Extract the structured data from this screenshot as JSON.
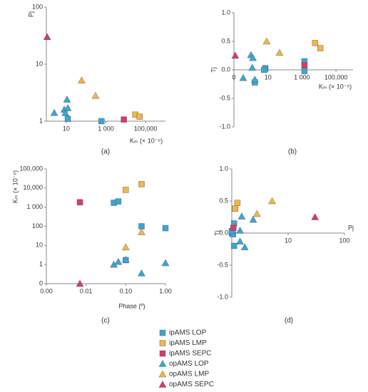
{
  "chart_data": [
    {
      "type": "scatter",
      "label": "(a)",
      "xlabel": "Kₘ (× 10⁻⁶)",
      "ylabel": "Pj",
      "xlog": true,
      "ylog": true,
      "xlim": [
        1,
        1000000
      ],
      "ylim": [
        1,
        100
      ],
      "xticks": [
        10,
        {
          "value": 1000,
          "label": "1 000"
        },
        {
          "value": 100000,
          "label": "100,000"
        }
      ],
      "yticks": [
        1,
        10,
        100
      ],
      "series": [
        {
          "name": "ipAMS LOP",
          "color": "#3aa6d4",
          "marker": "square",
          "x": [
            12,
            600
          ],
          "values": [
            1.1,
            1.0
          ]
        },
        {
          "name": "ipAMS LMP",
          "color": "#f2b44b",
          "marker": "square",
          "x": [
            30000,
            50000
          ],
          "values": [
            1.3,
            1.2
          ]
        },
        {
          "name": "ipAMS SEPC",
          "color": "#d9396a",
          "marker": "square",
          "x": [
            8000
          ],
          "values": [
            1.07
          ]
        },
        {
          "name": "opAMS LOP",
          "color": "#3aa6d4",
          "marker": "triangle",
          "x": [
            2.5,
            8,
            9,
            11,
            12
          ],
          "values": [
            1.4,
            1.6,
            1.4,
            2.4,
            1.7
          ]
        },
        {
          "name": "opAMS LMP",
          "color": "#f2b44b",
          "marker": "triangle",
          "x": [
            60,
            300
          ],
          "values": [
            5.2,
            2.8
          ]
        },
        {
          "name": "opAMS SEPC",
          "color": "#d9396a",
          "marker": "triangle",
          "x": [
            1.1
          ],
          "values": [
            30
          ]
        }
      ]
    },
    {
      "type": "scatter",
      "label": "(b)",
      "xlabel": "Kₘ (× 10⁻⁶)",
      "ylabel": "Tj",
      "xlog": true,
      "ylog": false,
      "x_axis_at_zero": true,
      "xlim": [
        0.1,
        1000000
      ],
      "ylim": [
        -1,
        1
      ],
      "xticks": [
        {
          "value": 0.1,
          "label": "0"
        },
        10,
        {
          "value": 1000,
          "label": "1 000"
        },
        {
          "value": 100000,
          "label": "100,000"
        }
      ],
      "yticks": [
        {
          "value": 1,
          "label": "1.0"
        },
        0.5,
        {
          "value": 0,
          "label": "0.0"
        },
        -0.5,
        {
          "value": -1,
          "label": "-1.0"
        }
      ],
      "series": [
        {
          "color": "#3aa6d4",
          "marker": "square",
          "x": [
            1.7,
            7,
            6,
            1400,
            1400
          ],
          "values": [
            -0.22,
            0.03,
            0.0,
            0.15,
            -0.02
          ]
        },
        {
          "color": "#f2b44b",
          "marker": "square",
          "x": [
            5900,
            12000
          ],
          "values": [
            0.47,
            0.38
          ]
        },
        {
          "color": "#d9396a",
          "marker": "square",
          "x": [
            1400
          ],
          "values": [
            0.08
          ]
        },
        {
          "color": "#3aa6d4",
          "marker": "triangle",
          "x": [
            0.35,
            1.0,
            1.3,
            1.2,
            1.7
          ],
          "values": [
            -0.14,
            0.26,
            0.21,
            0.04,
            -0.17
          ]
        },
        {
          "color": "#f2b44b",
          "marker": "triangle",
          "x": [
            8.4,
            48
          ],
          "values": [
            0.5,
            0.3
          ]
        },
        {
          "color": "#d9396a",
          "marker": "triangle",
          "x": [
            0.12
          ],
          "values": [
            0.25
          ]
        }
      ]
    },
    {
      "type": "scatter",
      "label": "(c)",
      "xlabel": "Phase (º)",
      "ylabel": "Kₘ (× 10⁻⁶)",
      "xlog": true,
      "ylog": true,
      "xlim": [
        0.001,
        1
      ],
      "ylim": [
        0.1,
        100000
      ],
      "xticks": [
        {
          "value": 0.001,
          "label": "0.00"
        },
        {
          "value": 0.01,
          "label": "0.01"
        },
        {
          "value": 0.1,
          "label": "0.10"
        },
        {
          "value": 1,
          "label": "1.00"
        }
      ],
      "yticks": [
        {
          "value": 0.1,
          "label": "0"
        },
        1,
        10,
        100,
        {
          "value": 1000,
          "label": "1 000"
        },
        {
          "value": 10000,
          "label": "10,000"
        },
        {
          "value": 100000,
          "label": "100,000"
        }
      ],
      "series": [
        {
          "color": "#3aa6d4",
          "marker": "square",
          "x": [
            0.05,
            0.065,
            0.1,
            0.25,
            1.0
          ],
          "values": [
            1700,
            2000,
            1.7,
            100,
            80
          ]
        },
        {
          "color": "#f2b44b",
          "marker": "square",
          "x": [
            0.1,
            0.25
          ],
          "values": [
            8000,
            16000
          ]
        },
        {
          "color": "#d9396a",
          "marker": "square",
          "x": [
            0.007
          ],
          "values": [
            1800
          ]
        },
        {
          "color": "#3aa6d4",
          "marker": "triangle",
          "x": [
            0.05,
            0.065,
            0.1,
            0.25,
            1.0
          ],
          "values": [
            1.0,
            1.4,
            1.8,
            0.35,
            1.2
          ]
        },
        {
          "color": "#f2b44b",
          "marker": "triangle",
          "x": [
            0.1,
            0.25
          ],
          "values": [
            8,
            50
          ]
        },
        {
          "color": "#d9396a",
          "marker": "triangle",
          "x": [
            0.007
          ],
          "values": [
            0.1
          ]
        }
      ]
    },
    {
      "type": "scatter",
      "label": "(d)",
      "xlabel": "Pj",
      "ylabel": "Tj",
      "xlog": true,
      "ylog": false,
      "x_axis_at_zero": true,
      "xlim": [
        1,
        100
      ],
      "ylim": [
        -1,
        1
      ],
      "xticks": [
        10,
        100
      ],
      "yticks": [
        {
          "value": 1,
          "label": "1.0"
        },
        0.5,
        {
          "value": 0,
          "label": "0.0"
        },
        -0.5,
        {
          "value": -1,
          "label": "-1.0"
        }
      ],
      "series": [
        {
          "color": "#3aa6d4",
          "marker": "square",
          "x": [
            1.1,
            1.0,
            1.05,
            1.1,
            1.0
          ],
          "values": [
            0.15,
            0.0,
            -0.02,
            -0.2,
            0.03
          ]
        },
        {
          "color": "#f2b44b",
          "marker": "square",
          "x": [
            1.26,
            1.15
          ],
          "values": [
            0.47,
            0.38
          ]
        },
        {
          "color": "#d9396a",
          "marker": "square",
          "x": [
            1.07
          ],
          "values": [
            0.08
          ]
        },
        {
          "color": "#3aa6d4",
          "marker": "triangle",
          "x": [
            1.5,
            1.4,
            1.7,
            1.4,
            2.4
          ],
          "values": [
            0.26,
            0.04,
            -0.22,
            -0.13,
            0.21
          ]
        },
        {
          "color": "#f2b44b",
          "marker": "triangle",
          "x": [
            5.2,
            2.8
          ],
          "values": [
            0.5,
            0.3
          ]
        },
        {
          "color": "#d9396a",
          "marker": "triangle",
          "x": [
            30
          ],
          "values": [
            0.25
          ]
        }
      ]
    }
  ]
}
